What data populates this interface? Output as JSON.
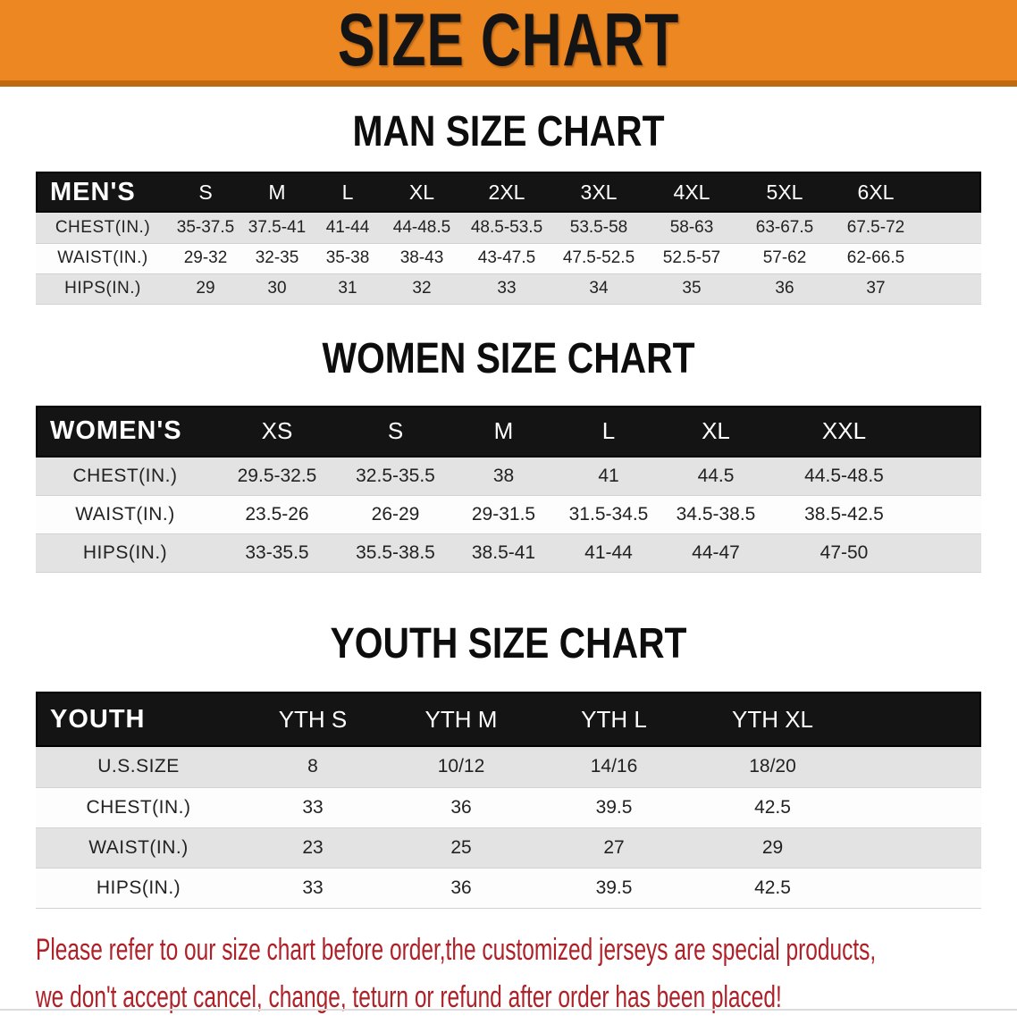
{
  "banner": {
    "title": "SIZE CHART"
  },
  "sections": [
    {
      "heading": "MAN SIZE CHART",
      "table": {
        "header": [
          "MEN'S",
          "S",
          "M",
          "L",
          "XL",
          "2XL",
          "3XL",
          "4XL",
          "5XL",
          "6XL"
        ],
        "rows": [
          {
            "label": "CHEST(IN.)",
            "values": [
              "35-37.5",
              "37.5-41",
              "41-44",
              "44-48.5",
              "48.5-53.5",
              "53.5-58",
              "58-63",
              "63-67.5",
              "67.5-72"
            ]
          },
          {
            "label": "WAIST(IN.)",
            "values": [
              "29-32",
              "32-35",
              "35-38",
              "38-43",
              "43-47.5",
              "47.5-52.5",
              "52.5-57",
              "57-62",
              "62-66.5"
            ]
          },
          {
            "label": "HIPS(IN.)",
            "values": [
              "29",
              "30",
              "31",
              "32",
              "33",
              "34",
              "35",
              "36",
              "37"
            ]
          }
        ]
      }
    },
    {
      "heading": "WOMEN SIZE CHART",
      "table": {
        "header": [
          "WOMEN'S",
          "XS",
          "S",
          "M",
          "L",
          "XL",
          "XXL"
        ],
        "rows": [
          {
            "label": "CHEST(IN.)",
            "values": [
              "29.5-32.5",
              "32.5-35.5",
              "38",
              "41",
              "44.5",
              "44.5-48.5"
            ]
          },
          {
            "label": "WAIST(IN.)",
            "values": [
              "23.5-26",
              "26-29",
              "29-31.5",
              "31.5-34.5",
              "34.5-38.5",
              "38.5-42.5"
            ]
          },
          {
            "label": "HIPS(IN.)",
            "values": [
              "33-35.5",
              "35.5-38.5",
              "38.5-41",
              "41-44",
              "44-47",
              "47-50"
            ]
          }
        ]
      }
    },
    {
      "heading": "YOUTH SIZE CHART",
      "table": {
        "header": [
          "YOUTH",
          "YTH S",
          "YTH M",
          "YTH L",
          "YTH XL"
        ],
        "rows": [
          {
            "label": "U.S.SIZE",
            "values": [
              "8",
              "10/12",
              "14/16",
              "18/20"
            ]
          },
          {
            "label": "CHEST(IN.)",
            "values": [
              "33",
              "36",
              "39.5",
              "42.5"
            ]
          },
          {
            "label": "WAIST(IN.)",
            "values": [
              "23",
              "25",
              "27",
              "29"
            ]
          },
          {
            "label": "HIPS(IN.)",
            "values": [
              "33",
              "36",
              "39.5",
              "42.5"
            ]
          }
        ]
      }
    }
  ],
  "disclaimer": {
    "line1": "Please refer to our size chart before order,the customized jerseys are special products,",
    "line2": "we don't accept cancel, change, teturn or refund after order has been placed!"
  },
  "colors": {
    "banner_orange": "#ED8722",
    "banner_orange_dark": "#C06A10",
    "table_header_black": "#141414",
    "row_stripe_gray": "#E3E3E4",
    "disclaimer_red": "#AF2128"
  }
}
